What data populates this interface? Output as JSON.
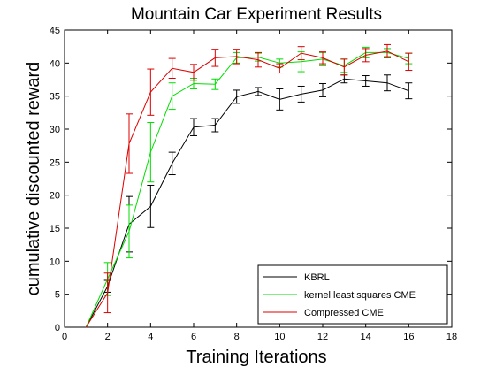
{
  "chart_data": {
    "type": "line",
    "title": "Mountain Car Experiment Results",
    "xlabel": "Training Iterations",
    "ylabel": "cumulative discounted reward",
    "xlim": [
      0,
      18
    ],
    "ylim": [
      0,
      45
    ],
    "xticks": [
      "0",
      "2",
      "4",
      "6",
      "8",
      "10",
      "12",
      "14",
      "16",
      "18"
    ],
    "yticks": [
      "0",
      "5",
      "10",
      "15",
      "20",
      "25",
      "30",
      "35",
      "40",
      "45"
    ],
    "grid": false,
    "legend_position": "bottom-right",
    "x": [
      1,
      2,
      3,
      4,
      5,
      6,
      7,
      8,
      9,
      10,
      11,
      12,
      13,
      14,
      15,
      16
    ],
    "series": [
      {
        "name": "KBRL",
        "color": "#000000",
        "values": [
          0,
          6.2,
          15.6,
          18.3,
          24.8,
          30.3,
          30.6,
          34.9,
          35.7,
          34.5,
          35.3,
          35.9,
          37.6,
          37.3,
          37.0,
          35.8
        ],
        "errors": [
          0,
          0.9,
          4.2,
          3.2,
          1.7,
          1.3,
          1.0,
          1.0,
          0.6,
          1.6,
          1.2,
          1.0,
          0.6,
          0.8,
          1.2,
          1.2
        ]
      },
      {
        "name": "kernel least squares CME",
        "color": "#00dd00",
        "values": [
          0,
          7.3,
          14.5,
          26.5,
          35.0,
          36.9,
          36.8,
          40.8,
          40.9,
          40.0,
          40.2,
          40.6,
          39.6,
          41.6,
          41.6,
          40.7
        ],
        "errors": [
          0,
          2.5,
          4.0,
          4.5,
          2.0,
          0.8,
          0.8,
          0.8,
          0.6,
          0.6,
          1.5,
          1.0,
          1.0,
          0.8,
          0.6,
          0.8
        ]
      },
      {
        "name": "Compressed CME",
        "color": "#dd0000",
        "values": [
          0,
          5.2,
          27.8,
          35.6,
          39.2,
          38.6,
          40.8,
          41.0,
          40.5,
          39.2,
          41.5,
          40.8,
          39.4,
          41.2,
          41.8,
          40.2
        ],
        "errors": [
          0,
          3.0,
          4.5,
          3.5,
          1.5,
          1.2,
          1.3,
          1.1,
          1.1,
          0.7,
          1.0,
          0.9,
          1.2,
          1.0,
          1.0,
          1.3
        ]
      }
    ]
  }
}
